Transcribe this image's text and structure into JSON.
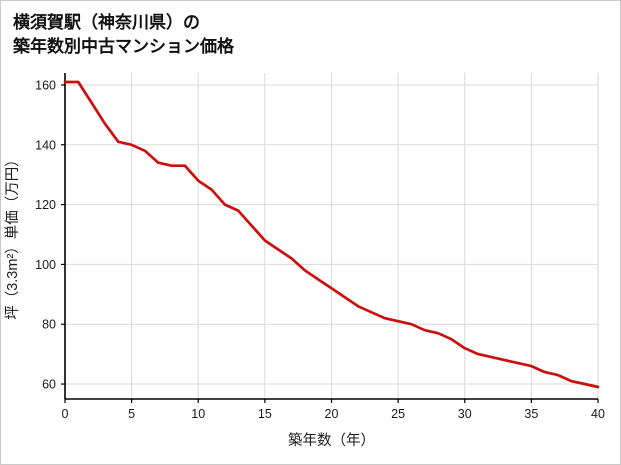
{
  "title": {
    "line1": "横須賀駅（神奈川県）の",
    "line2": "築年数別中古マンション価格"
  },
  "chart_data": {
    "type": "line",
    "title": "横須賀駅（神奈川県）の築年数別中古マンション価格",
    "xlabel": "築年数（年）",
    "ylabel": "坪（3.3m²）単価（万円）",
    "x": [
      0,
      1,
      2,
      3,
      4,
      5,
      6,
      7,
      8,
      9,
      10,
      11,
      12,
      13,
      14,
      15,
      16,
      17,
      18,
      19,
      20,
      21,
      22,
      23,
      24,
      25,
      26,
      27,
      28,
      29,
      30,
      31,
      32,
      33,
      34,
      35,
      36,
      37,
      38,
      39,
      40
    ],
    "values": [
      161,
      161,
      154,
      147,
      141,
      140,
      138,
      134,
      133,
      133,
      128,
      125,
      120,
      118,
      113,
      108,
      105,
      102,
      98,
      95,
      92,
      89,
      86,
      84,
      82,
      81,
      80,
      78,
      77,
      75,
      72,
      70,
      69,
      68,
      67,
      66,
      64,
      63,
      61,
      60,
      59
    ],
    "xlim": [
      0,
      40
    ],
    "ylim": [
      55,
      164
    ],
    "xticks": [
      0,
      5,
      10,
      15,
      20,
      25,
      30,
      35,
      40
    ],
    "yticks": [
      60,
      80,
      100,
      120,
      140,
      160
    ],
    "grid": true,
    "legend": "none",
    "colors": {
      "line": "#cc0e0e",
      "grid": "#d9d9d9",
      "axis": "#000000",
      "text": "#1a1a1a"
    }
  }
}
